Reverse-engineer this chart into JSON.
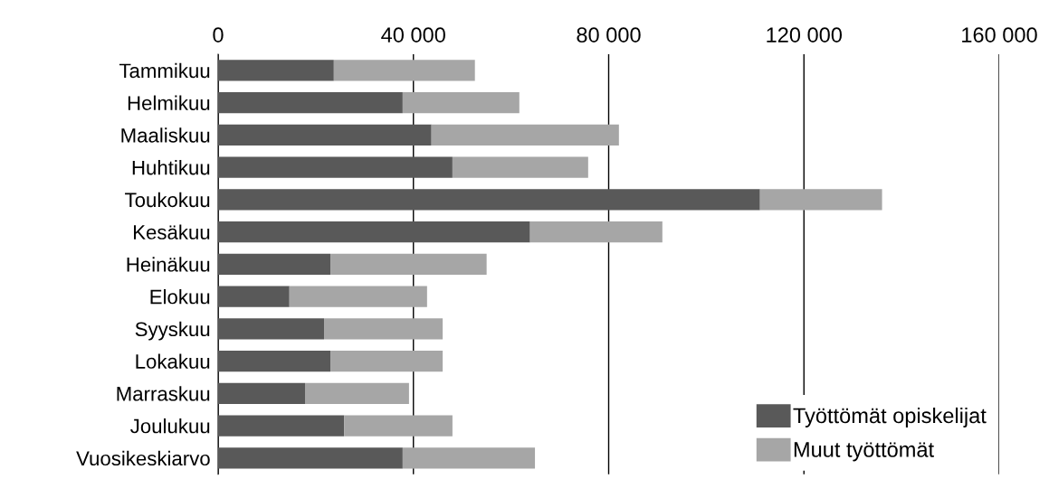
{
  "chart_data": {
    "type": "bar",
    "orientation": "horizontal",
    "stacked": true,
    "categories": [
      "Tammikuu",
      "Helmikuu",
      "Maaliskuu",
      "Huhtikuu",
      "Toukokuu",
      "Kesäkuu",
      "Heinäkuu",
      "Elokuu",
      "Syyskuu",
      "Lokakuu",
      "Marraskuu",
      "Joulukuu",
      "Vuosikeskiarvo"
    ],
    "series": [
      {
        "name": "Työttömät opiskelijat",
        "color": "#595959",
        "values": [
          23700,
          37800,
          43700,
          48000,
          111000,
          63900,
          23000,
          14600,
          21700,
          23000,
          17800,
          25800,
          37800
        ]
      },
      {
        "name": "Muut työttömät",
        "color": "#a6a6a6",
        "values": [
          28900,
          23900,
          38400,
          27800,
          25000,
          27100,
          32000,
          28200,
          24300,
          23000,
          21300,
          22200,
          27100
        ]
      }
    ],
    "xlim": [
      0,
      160000
    ],
    "xticks": [
      0,
      {
        "value": 40000,
        "label": "40 000"
      },
      {
        "value": 80000,
        "label": "80 000"
      },
      {
        "value": 120000,
        "label": "120 000"
      },
      {
        "value": 160000,
        "label": "160 000"
      }
    ],
    "grid": "x",
    "legend": "bottom right"
  }
}
